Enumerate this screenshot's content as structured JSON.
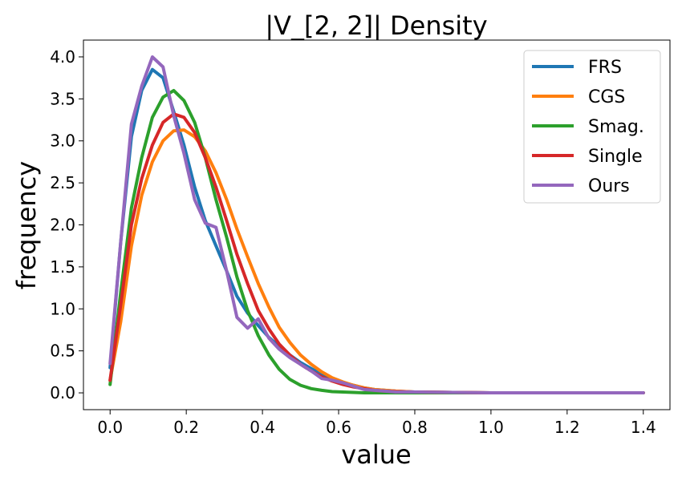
{
  "chart_data": {
    "type": "line",
    "title": "|V_[2, 2]| Density",
    "xlabel": "value",
    "ylabel": "frequency",
    "xlim": [
      -0.07,
      1.47
    ],
    "ylim": [
      -0.2,
      4.2
    ],
    "xticks": [
      0.0,
      0.2,
      0.4,
      0.6,
      0.8,
      1.0,
      1.2,
      1.4
    ],
    "xtick_labels": [
      "0.0",
      "0.2",
      "0.4",
      "0.6",
      "0.8",
      "1.0",
      "1.2",
      "1.4"
    ],
    "yticks": [
      0.0,
      0.5,
      1.0,
      1.5,
      2.0,
      2.5,
      3.0,
      3.5,
      4.0
    ],
    "ytick_labels": [
      "0.0",
      "0.5",
      "1.0",
      "1.5",
      "2.0",
      "2.5",
      "3.0",
      "3.5",
      "4.0"
    ],
    "legend_position": "top-right",
    "series": [
      {
        "name": "FRS",
        "color": "#1f77b4",
        "x": [
          0.0,
          0.028,
          0.056,
          0.083,
          0.111,
          0.139,
          0.167,
          0.194,
          0.222,
          0.25,
          0.278,
          0.306,
          0.333,
          0.361,
          0.389,
          0.417,
          0.444,
          0.472,
          0.5,
          0.528,
          0.556,
          0.583,
          0.611,
          0.639,
          0.667,
          0.694,
          0.722,
          0.75,
          0.8,
          0.9,
          1.0,
          1.1,
          1.2,
          1.3,
          1.4
        ],
        "values": [
          0.3,
          1.8,
          3.05,
          3.6,
          3.85,
          3.75,
          3.35,
          2.95,
          2.45,
          2.05,
          1.75,
          1.45,
          1.15,
          0.95,
          0.8,
          0.66,
          0.55,
          0.45,
          0.36,
          0.29,
          0.22,
          0.17,
          0.12,
          0.09,
          0.06,
          0.04,
          0.03,
          0.02,
          0.01,
          0.005,
          0.0,
          0.0,
          0.0,
          0.0,
          0.0
        ]
      },
      {
        "name": "CGS",
        "color": "#ff7f0e",
        "x": [
          0.0,
          0.028,
          0.056,
          0.083,
          0.111,
          0.139,
          0.167,
          0.194,
          0.222,
          0.25,
          0.278,
          0.306,
          0.333,
          0.361,
          0.389,
          0.417,
          0.444,
          0.472,
          0.5,
          0.528,
          0.556,
          0.583,
          0.611,
          0.639,
          0.667,
          0.694,
          0.722,
          0.75,
          0.8,
          0.9,
          1.0,
          1.1,
          1.2,
          1.3,
          1.4
        ],
        "values": [
          0.15,
          0.85,
          1.75,
          2.35,
          2.75,
          3.0,
          3.12,
          3.13,
          3.05,
          2.88,
          2.62,
          2.3,
          1.95,
          1.62,
          1.3,
          1.02,
          0.78,
          0.6,
          0.45,
          0.34,
          0.25,
          0.18,
          0.13,
          0.09,
          0.06,
          0.04,
          0.03,
          0.02,
          0.01,
          0.005,
          0.0,
          0.0,
          0.0,
          0.0,
          0.0
        ]
      },
      {
        "name": "Smag.",
        "color": "#2ca02c",
        "x": [
          0.0,
          0.028,
          0.056,
          0.083,
          0.111,
          0.139,
          0.167,
          0.194,
          0.222,
          0.25,
          0.278,
          0.306,
          0.333,
          0.361,
          0.389,
          0.417,
          0.444,
          0.472,
          0.5,
          0.528,
          0.556,
          0.583,
          0.611,
          0.639,
          0.667,
          0.694,
          0.722,
          0.75,
          0.8,
          0.9,
          1.0,
          1.1,
          1.2,
          1.3,
          1.4
        ],
        "values": [
          0.1,
          1.2,
          2.2,
          2.8,
          3.28,
          3.52,
          3.6,
          3.48,
          3.22,
          2.8,
          2.3,
          1.85,
          1.38,
          0.98,
          0.68,
          0.45,
          0.28,
          0.16,
          0.09,
          0.05,
          0.03,
          0.015,
          0.01,
          0.005,
          0.0,
          0.0,
          0.0,
          0.0,
          0.0,
          0.0,
          0.0,
          0.0,
          0.0,
          0.0,
          0.0
        ]
      },
      {
        "name": "Single",
        "color": "#d62728",
        "x": [
          0.0,
          0.028,
          0.056,
          0.083,
          0.111,
          0.139,
          0.167,
          0.194,
          0.222,
          0.25,
          0.278,
          0.306,
          0.333,
          0.361,
          0.389,
          0.417,
          0.444,
          0.472,
          0.5,
          0.528,
          0.556,
          0.583,
          0.611,
          0.639,
          0.667,
          0.694,
          0.722,
          0.75,
          0.8,
          0.9,
          1.0,
          1.1,
          1.2,
          1.3,
          1.4
        ],
        "values": [
          0.15,
          1.05,
          2.0,
          2.55,
          2.95,
          3.22,
          3.32,
          3.28,
          3.1,
          2.8,
          2.45,
          2.05,
          1.65,
          1.3,
          0.98,
          0.76,
          0.58,
          0.45,
          0.34,
          0.26,
          0.19,
          0.14,
          0.1,
          0.07,
          0.05,
          0.03,
          0.02,
          0.015,
          0.01,
          0.005,
          0.0,
          0.0,
          0.0,
          0.0,
          0.0
        ]
      },
      {
        "name": "Ours",
        "color": "#9467bd",
        "x": [
          0.0,
          0.028,
          0.056,
          0.083,
          0.111,
          0.139,
          0.167,
          0.194,
          0.222,
          0.25,
          0.278,
          0.306,
          0.333,
          0.361,
          0.389,
          0.417,
          0.444,
          0.472,
          0.5,
          0.528,
          0.556,
          0.583,
          0.611,
          0.639,
          0.667,
          0.694,
          0.722,
          0.75,
          0.8,
          0.9,
          1.0,
          1.1,
          1.2,
          1.3,
          1.4
        ],
        "values": [
          0.35,
          1.8,
          3.2,
          3.65,
          4.0,
          3.88,
          3.3,
          2.85,
          2.3,
          2.02,
          1.97,
          1.45,
          0.9,
          0.77,
          0.88,
          0.65,
          0.52,
          0.42,
          0.34,
          0.26,
          0.17,
          0.15,
          0.12,
          0.08,
          0.04,
          0.03,
          0.02,
          0.01,
          0.01,
          0.005,
          0.0,
          0.0,
          0.0,
          0.0,
          0.0
        ]
      }
    ]
  }
}
